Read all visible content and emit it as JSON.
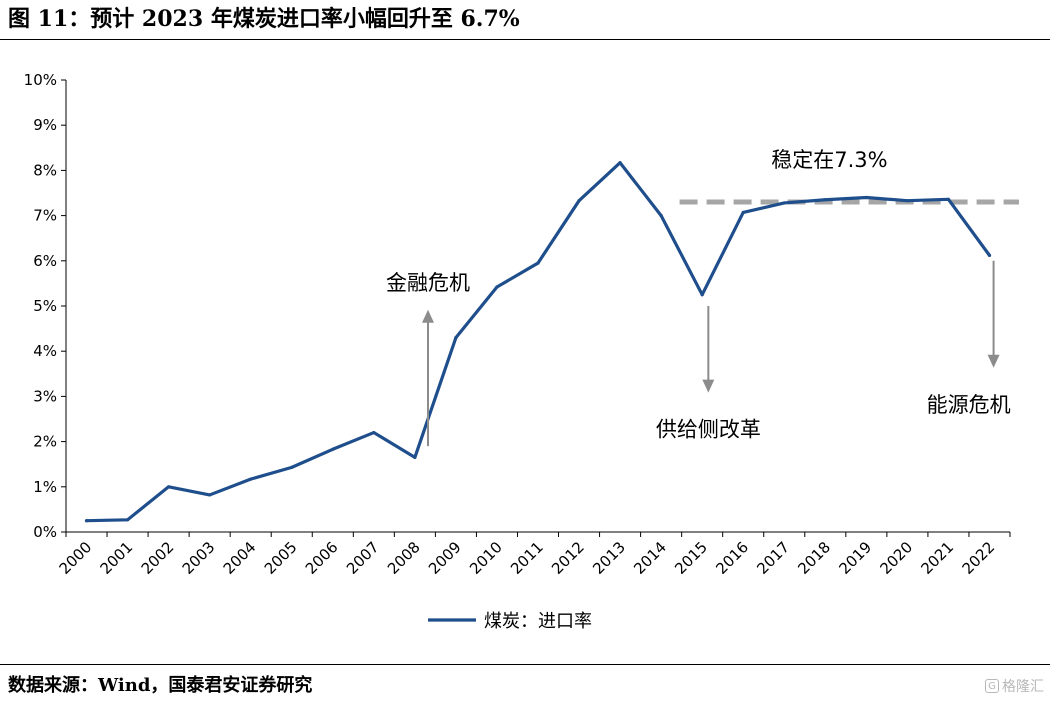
{
  "figure": {
    "title": "图 11：预计 2023 年煤炭进口率小幅回升至 6.7%",
    "source": "数据来源：Wind，国泰君安证券研究",
    "watermark": "格隆汇"
  },
  "colors": {
    "series": "#1f4e8c",
    "dashed_line": "#a6a6a6",
    "arrow": "#8c8c8c",
    "axis": "#000000"
  },
  "chart_data": {
    "type": "line",
    "title": "",
    "xlabel": "",
    "ylabel": "",
    "categories": [
      "2000",
      "2001",
      "2002",
      "2003",
      "2004",
      "2005",
      "2006",
      "2007",
      "2008",
      "2009",
      "2010",
      "2011",
      "2012",
      "2013",
      "2014",
      "2015",
      "2016",
      "2017",
      "2018",
      "2019",
      "2020",
      "2021",
      "2022"
    ],
    "series": [
      {
        "name": "煤炭：进口率",
        "values": [
          0.25,
          0.27,
          1.0,
          0.82,
          1.17,
          1.43,
          1.83,
          2.2,
          1.65,
          4.3,
          5.42,
          5.95,
          7.33,
          8.17,
          7.0,
          5.25,
          7.07,
          7.28,
          7.35,
          7.4,
          7.33,
          7.36,
          6.12
        ]
      }
    ],
    "ylim": [
      0,
      10
    ],
    "yticks": [
      0,
      1,
      2,
      3,
      4,
      5,
      6,
      7,
      8,
      9,
      10
    ],
    "ytick_labels": [
      "0%",
      "1%",
      "2%",
      "3%",
      "4%",
      "5%",
      "6%",
      "7%",
      "8%",
      "9%",
      "10%"
    ],
    "grid": false,
    "legend_position": "bottom-center",
    "reference_line": {
      "value": 7.3,
      "from": "2015",
      "to": "2022",
      "style": "dashed"
    },
    "annotations": [
      {
        "text": "金融危机",
        "at": "2008",
        "arrow": "up",
        "arrow_from": 1.9,
        "arrow_to": 4.85
      },
      {
        "text": "供给侧改革",
        "at": "2015",
        "arrow": "down",
        "arrow_from": 5.0,
        "arrow_to": 3.15
      },
      {
        "text": "稳定在7.3%",
        "at": "2018",
        "arrow": "none",
        "value": 8.25
      },
      {
        "text": "能源危机",
        "at": "2022",
        "arrow": "down",
        "arrow_from": 6.0,
        "arrow_to": 3.7
      }
    ]
  }
}
